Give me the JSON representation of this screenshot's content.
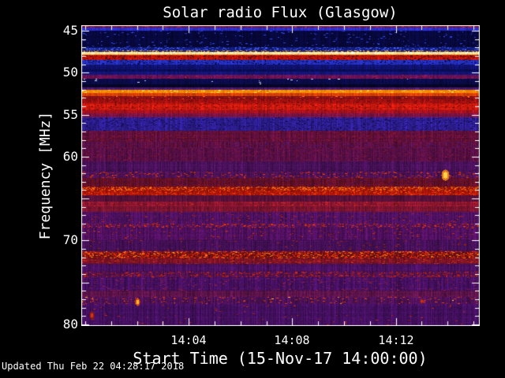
{
  "title": "Solar radio Flux (Glasgow)",
  "footer": {
    "updated": "Updated Thu Feb 22 04:28:17 2018"
  },
  "chart_data": {
    "type": "heatmap",
    "subtype": "radio-spectrogram",
    "title": "Solar radio Flux (Glasgow)",
    "xlabel": "Start Time (15-Nov-17 14:00:00)",
    "ylabel": "Frequency [MHz]",
    "x_axis": {
      "start_time": "14:00:00",
      "end_time": "14:15:15",
      "minutes_span": 15.25,
      "minor_tick_every_min": 1,
      "ticks": [
        {
          "t_min": 4,
          "label": "14:04"
        },
        {
          "t_min": 8,
          "label": "14:08"
        },
        {
          "t_min": 12,
          "label": "14:12"
        }
      ]
    },
    "y_axis": {
      "top_mhz": 44.34,
      "bottom_mhz": 80.19,
      "minor_tick_every_mhz": 1,
      "major_tick_every_mhz": 5,
      "ticks": [
        {
          "f_mhz": 45,
          "label": "45"
        },
        {
          "f_mhz": 50,
          "label": "50"
        },
        {
          "f_mhz": 55,
          "label": "55"
        },
        {
          "f_mhz": 60,
          "label": "60"
        },
        {
          "f_mhz": 70,
          "label": "70"
        },
        {
          "f_mhz": 80,
          "label": "80"
        }
      ]
    },
    "palette": {
      "background_low": "#07083c",
      "mid_purple": "#4d1160",
      "strong_red": "#c01408",
      "bright_orange": "#ff8a00",
      "saturated_line": "#ffe9a2",
      "axis_color": "#ffffff"
    },
    "bands": [
      [
        44.34,
        44.62,
        "#7a1030",
        0.35,
        [
          [
            "#b02030",
            0.18
          ]
        ]
      ],
      [
        44.62,
        44.98,
        "#2b2fd0",
        0.3,
        []
      ],
      [
        44.98,
        46.95,
        "#07083c",
        0.55,
        [
          [
            "#2a3fd0",
            0.04
          ]
        ]
      ],
      [
        46.95,
        47.3,
        "#101a78",
        0.4,
        [
          [
            "#3f58ee",
            0.35
          ]
        ]
      ],
      [
        47.3,
        47.5,
        "#3a2a50",
        0.3,
        [
          [
            "#cf9b52",
            0.6
          ]
        ]
      ],
      [
        47.5,
        47.78,
        "#ffe9a2",
        0.12,
        [
          [
            "#ffffff",
            0.25
          ]
        ]
      ],
      [
        47.78,
        47.95,
        "#fb7d1d",
        0.2,
        []
      ],
      [
        47.95,
        48.5,
        "#c01408",
        0.3,
        [
          [
            "#5c0a14",
            0.28
          ]
        ]
      ],
      [
        48.5,
        49.0,
        "#2531c0",
        0.3,
        [
          [
            "#0a0f60",
            0.25
          ]
        ]
      ],
      [
        49.0,
        49.55,
        "#101270",
        0.4,
        []
      ],
      [
        49.55,
        49.9,
        "#0a0c52",
        0.4,
        []
      ],
      [
        49.9,
        50.25,
        "#131479",
        0.4,
        []
      ],
      [
        50.25,
        50.7,
        "#6b1258",
        0.4,
        [
          [
            "#8c1a40",
            0.15
          ]
        ]
      ],
      [
        50.7,
        51.35,
        "#0b0b4a",
        0.45,
        [
          [
            "#ccd4ff",
            0.012
          ]
        ]
      ],
      [
        51.35,
        51.8,
        "#060628",
        0.45,
        []
      ],
      [
        51.8,
        52.0,
        "#4e1a72",
        0.35,
        []
      ],
      [
        52.0,
        52.42,
        "#ff8a00",
        0.15,
        [
          [
            "#ffc040",
            0.18
          ]
        ]
      ],
      [
        52.42,
        52.75,
        "#d84208",
        0.25,
        []
      ],
      [
        52.75,
        53.2,
        "#8c1014",
        0.35,
        [
          [
            "#ff5a20",
            0.04
          ]
        ]
      ],
      [
        53.2,
        53.6,
        "#a81110",
        0.3,
        [
          [
            "#6e0a10",
            0.2
          ]
        ]
      ],
      [
        53.6,
        54.45,
        "#cf1a0e",
        0.28,
        [
          [
            "#8c0c0c",
            0.2
          ]
        ]
      ],
      [
        54.45,
        54.85,
        "#a01020",
        0.3,
        []
      ],
      [
        54.85,
        55.3,
        "#7a1342",
        0.35,
        []
      ],
      [
        55.3,
        56.9,
        "#2f1f96",
        0.45,
        [
          [
            "#181060",
            0.25
          ]
        ]
      ],
      [
        56.9,
        58.2,
        "#5e0f3d",
        0.5,
        [
          [
            "#75141f",
            0.15
          ]
        ]
      ],
      [
        58.2,
        59.0,
        "#611040",
        0.5,
        [
          [
            "#4a1468",
            0.15
          ]
        ]
      ],
      [
        59.0,
        60.55,
        "#570f47",
        0.5,
        [
          [
            "#6d1230",
            0.12
          ]
        ]
      ],
      [
        60.55,
        61.75,
        "#49115a",
        0.48,
        []
      ],
      [
        61.75,
        62.55,
        "#4c1156",
        0.45,
        [
          [
            "#c03010",
            0.12
          ]
        ]
      ],
      [
        62.55,
        63.6,
        "#651024",
        0.48,
        [
          [
            "#4a1150",
            0.15
          ]
        ]
      ],
      [
        63.6,
        64.05,
        "#9c1408",
        0.35,
        [
          [
            "#f26410",
            0.5
          ]
        ]
      ],
      [
        64.05,
        64.6,
        "#ad1509",
        0.35,
        [
          [
            "#d83a0c",
            0.25
          ]
        ]
      ],
      [
        64.6,
        65.35,
        "#571038",
        0.45,
        []
      ],
      [
        65.35,
        65.95,
        "#8a1530",
        0.4,
        [
          [
            "#a8201e",
            0.15
          ]
        ]
      ],
      [
        65.95,
        66.55,
        "#7c1430",
        0.4,
        []
      ],
      [
        66.55,
        67.95,
        "#4d1160",
        0.48,
        [
          [
            "#8f1c20",
            0.05
          ]
        ]
      ],
      [
        67.95,
        68.5,
        "#521158",
        0.45,
        [
          [
            "#c62c0e",
            0.3
          ]
        ]
      ],
      [
        68.5,
        70.0,
        "#511060",
        0.48,
        [
          [
            "#a02812",
            0.035
          ]
        ]
      ],
      [
        70.0,
        71.3,
        "#451058",
        0.48,
        [
          [
            "#8f2010",
            0.03
          ]
        ]
      ],
      [
        71.3,
        72.1,
        "#6e1016",
        0.4,
        [
          [
            "#d42a08",
            0.45
          ],
          [
            "#ff7718",
            0.1
          ]
        ]
      ],
      [
        72.1,
        72.8,
        "#7c1226",
        0.42,
        [
          [
            "#b02a10",
            0.12
          ]
        ]
      ],
      [
        72.8,
        73.7,
        "#4a1160",
        0.48,
        []
      ],
      [
        73.7,
        74.37,
        "#531150",
        0.45,
        [
          [
            "#b22210",
            0.25
          ]
        ]
      ],
      [
        74.37,
        76.0,
        "#471063",
        0.48,
        [
          [
            "#7c1a3a",
            0.08
          ]
        ]
      ],
      [
        76.0,
        76.75,
        "#5a1348",
        0.48,
        []
      ],
      [
        76.75,
        77.55,
        "#4e1157",
        0.45,
        [
          [
            "#c03612",
            0.06
          ],
          [
            "#ffad2e",
            0.006
          ]
        ]
      ],
      [
        77.55,
        80.19,
        "#451061",
        0.48,
        [
          [
            "#aa2210",
            0.012
          ]
        ]
      ]
    ],
    "bright_blobs": [
      {
        "t_min": 13.9,
        "f_mhz": 62.15,
        "w": 5,
        "h": 7,
        "core": "#ffd24a",
        "edge": "#e07818"
      },
      {
        "t_min": 2.0,
        "f_mhz": 77.25,
        "w": 3,
        "h": 5,
        "core": "#ffb82a",
        "edge": "#d4500e"
      },
      {
        "t_min": 0.25,
        "f_mhz": 78.9,
        "w": 3,
        "h": 5,
        "core": "#d43414",
        "edge": "#8c1a10"
      },
      {
        "t_min": 13.0,
        "f_mhz": 77.2,
        "w": 2,
        "h": 3,
        "core": "#e03414",
        "edge": "#a02010"
      }
    ]
  }
}
